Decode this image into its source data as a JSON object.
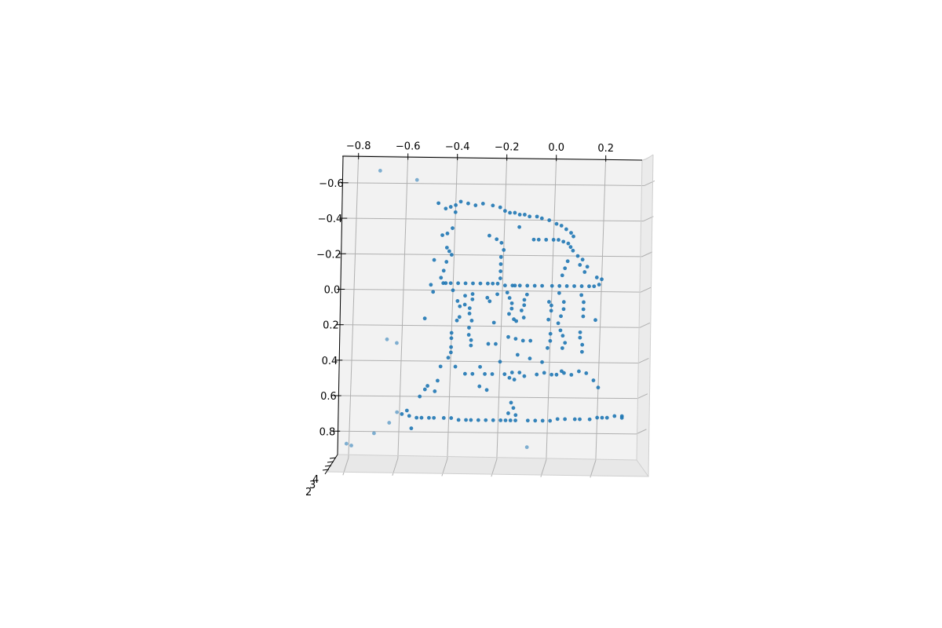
{
  "chart_data": {
    "type": "scatter",
    "projection": "3d",
    "title": "",
    "xlabel": "",
    "ylabel": "",
    "zlabel": "",
    "grid": true,
    "pane_color": "#f2f2f2",
    "marker_color": "#1f77b4",
    "xlim": [
      -0.85,
      0.35
    ],
    "ylim": [
      -0.75,
      0.95
    ],
    "x_ticks": [
      "−0.8",
      "−0.6",
      "−0.4",
      "−0.2",
      "0.0",
      "0.2"
    ],
    "y_ticks": [
      "−0.6",
      "−0.4",
      "−0.2",
      "0.0",
      "0.2",
      "0.4",
      "0.6",
      "0.8"
    ],
    "z_ticks_visible": [
      "2",
      "3",
      "4"
    ],
    "points": [
      {
        "x": -0.71,
        "y": -0.67
      },
      {
        "x": -0.56,
        "y": -0.62
      },
      {
        "x": -0.47,
        "y": -0.49
      },
      {
        "x": -0.44,
        "y": -0.46
      },
      {
        "x": -0.42,
        "y": -0.47
      },
      {
        "x": -0.4,
        "y": -0.48
      },
      {
        "x": -0.38,
        "y": -0.5
      },
      {
        "x": -0.35,
        "y": -0.49
      },
      {
        "x": -0.32,
        "y": -0.48
      },
      {
        "x": -0.29,
        "y": -0.49
      },
      {
        "x": -0.25,
        "y": -0.48
      },
      {
        "x": -0.22,
        "y": -0.47
      },
      {
        "x": -0.2,
        "y": -0.45
      },
      {
        "x": -0.18,
        "y": -0.44
      },
      {
        "x": -0.16,
        "y": -0.44
      },
      {
        "x": -0.14,
        "y": -0.43
      },
      {
        "x": -0.12,
        "y": -0.43
      },
      {
        "x": -0.1,
        "y": -0.42
      },
      {
        "x": -0.07,
        "y": -0.42
      },
      {
        "x": -0.05,
        "y": -0.41
      },
      {
        "x": -0.02,
        "y": -0.4
      },
      {
        "x": 0.01,
        "y": -0.38
      },
      {
        "x": 0.03,
        "y": -0.37
      },
      {
        "x": 0.05,
        "y": -0.35
      },
      {
        "x": 0.07,
        "y": -0.33
      },
      {
        "x": 0.08,
        "y": -0.31
      },
      {
        "x": -0.4,
        "y": -0.44
      },
      {
        "x": -0.41,
        "y": -0.35
      },
      {
        "x": -0.45,
        "y": -0.31
      },
      {
        "x": -0.43,
        "y": -0.32
      },
      {
        "x": -0.43,
        "y": -0.24
      },
      {
        "x": -0.42,
        "y": -0.22
      },
      {
        "x": -0.41,
        "y": -0.2
      },
      {
        "x": -0.48,
        "y": -0.17
      },
      {
        "x": -0.43,
        "y": -0.16
      },
      {
        "x": -0.44,
        "y": -0.11
      },
      {
        "x": -0.45,
        "y": -0.07
      },
      {
        "x": -0.49,
        "y": -0.03
      },
      {
        "x": -0.44,
        "y": -0.04
      },
      {
        "x": -0.26,
        "y": -0.31
      },
      {
        "x": -0.23,
        "y": -0.29
      },
      {
        "x": -0.21,
        "y": -0.27
      },
      {
        "x": -0.2,
        "y": -0.23
      },
      {
        "x": -0.21,
        "y": -0.19
      },
      {
        "x": -0.21,
        "y": -0.15
      },
      {
        "x": -0.21,
        "y": -0.11
      },
      {
        "x": -0.21,
        "y": -0.07
      },
      {
        "x": -0.22,
        "y": -0.04
      },
      {
        "x": -0.14,
        "y": -0.36
      },
      {
        "x": -0.08,
        "y": -0.29
      },
      {
        "x": -0.06,
        "y": -0.29
      },
      {
        "x": -0.03,
        "y": -0.29
      },
      {
        "x": 0.0,
        "y": -0.29
      },
      {
        "x": 0.02,
        "y": -0.29
      },
      {
        "x": 0.04,
        "y": -0.28
      },
      {
        "x": 0.06,
        "y": -0.27
      },
      {
        "x": 0.07,
        "y": -0.25
      },
      {
        "x": 0.08,
        "y": -0.23
      },
      {
        "x": 0.1,
        "y": -0.2
      },
      {
        "x": 0.12,
        "y": -0.18
      },
      {
        "x": 0.11,
        "y": -0.15
      },
      {
        "x": 0.14,
        "y": -0.14
      },
      {
        "x": 0.13,
        "y": -0.11
      },
      {
        "x": 0.06,
        "y": -0.17
      },
      {
        "x": 0.05,
        "y": -0.13
      },
      {
        "x": 0.04,
        "y": -0.09
      },
      {
        "x": 0.18,
        "y": -0.08
      },
      {
        "x": 0.2,
        "y": -0.07
      },
      {
        "x": 0.19,
        "y": -0.04
      },
      {
        "x": -0.43,
        "y": -0.04
      },
      {
        "x": -0.41,
        "y": -0.04
      },
      {
        "x": -0.38,
        "y": -0.04
      },
      {
        "x": -0.35,
        "y": -0.04
      },
      {
        "x": -0.32,
        "y": -0.04
      },
      {
        "x": -0.29,
        "y": -0.04
      },
      {
        "x": -0.26,
        "y": -0.04
      },
      {
        "x": -0.24,
        "y": -0.04
      },
      {
        "x": -0.19,
        "y": -0.03
      },
      {
        "x": -0.16,
        "y": -0.03
      },
      {
        "x": -0.15,
        "y": -0.03
      },
      {
        "x": -0.13,
        "y": -0.03
      },
      {
        "x": -0.1,
        "y": -0.03
      },
      {
        "x": -0.07,
        "y": -0.03
      },
      {
        "x": -0.04,
        "y": -0.03
      },
      {
        "x": 0.0,
        "y": -0.03
      },
      {
        "x": 0.03,
        "y": -0.03
      },
      {
        "x": 0.06,
        "y": -0.03
      },
      {
        "x": 0.09,
        "y": -0.03
      },
      {
        "x": 0.12,
        "y": -0.03
      },
      {
        "x": 0.15,
        "y": -0.03
      },
      {
        "x": 0.17,
        "y": -0.03
      },
      {
        "x": -0.4,
        "y": 0.0
      },
      {
        "x": -0.38,
        "y": 0.06
      },
      {
        "x": -0.37,
        "y": 0.09
      },
      {
        "x": -0.37,
        "y": 0.15
      },
      {
        "x": -0.38,
        "y": 0.17
      },
      {
        "x": -0.48,
        "y": 0.01
      },
      {
        "x": -0.51,
        "y": 0.16
      },
      {
        "x": -0.35,
        "y": 0.03
      },
      {
        "x": -0.35,
        "y": 0.08
      },
      {
        "x": -0.32,
        "y": 0.02
      },
      {
        "x": -0.32,
        "y": 0.05
      },
      {
        "x": -0.33,
        "y": 0.1
      },
      {
        "x": -0.33,
        "y": 0.13
      },
      {
        "x": -0.32,
        "y": 0.17
      },
      {
        "x": -0.33,
        "y": 0.21
      },
      {
        "x": -0.33,
        "y": 0.25
      },
      {
        "x": -0.32,
        "y": 0.28
      },
      {
        "x": -0.32,
        "y": 0.31
      },
      {
        "x": -0.4,
        "y": 0.24
      },
      {
        "x": -0.4,
        "y": 0.27
      },
      {
        "x": -0.4,
        "y": 0.32
      },
      {
        "x": -0.4,
        "y": 0.35
      },
      {
        "x": -0.26,
        "y": 0.04
      },
      {
        "x": -0.25,
        "y": 0.06
      },
      {
        "x": -0.22,
        "y": 0.02
      },
      {
        "x": -0.23,
        "y": 0.18
      },
      {
        "x": -0.22,
        "y": 0.3
      },
      {
        "x": -0.25,
        "y": 0.3
      },
      {
        "x": -0.18,
        "y": 0.01
      },
      {
        "x": -0.17,
        "y": 0.04
      },
      {
        "x": -0.16,
        "y": 0.07
      },
      {
        "x": -0.16,
        "y": 0.1
      },
      {
        "x": -0.17,
        "y": 0.13
      },
      {
        "x": -0.15,
        "y": 0.16
      },
      {
        "x": -0.14,
        "y": 0.17
      },
      {
        "x": -0.17,
        "y": 0.26
      },
      {
        "x": -0.14,
        "y": 0.27
      },
      {
        "x": -0.1,
        "y": 0.02
      },
      {
        "x": -0.11,
        "y": 0.05
      },
      {
        "x": -0.11,
        "y": 0.08
      },
      {
        "x": -0.12,
        "y": 0.11
      },
      {
        "x": -0.11,
        "y": 0.15
      },
      {
        "x": -0.11,
        "y": 0.28
      },
      {
        "x": -0.08,
        "y": 0.28
      },
      {
        "x": -0.13,
        "y": 0.36
      },
      {
        "x": -0.01,
        "y": 0.06
      },
      {
        "x": 0.0,
        "y": 0.08
      },
      {
        "x": 0.0,
        "y": 0.11
      },
      {
        "x": -0.01,
        "y": 0.16
      },
      {
        "x": 0.0,
        "y": 0.24
      },
      {
        "x": 0.0,
        "y": 0.28
      },
      {
        "x": -0.01,
        "y": 0.32
      },
      {
        "x": 0.03,
        "y": 0.01
      },
      {
        "x": 0.03,
        "y": 0.18
      },
      {
        "x": 0.05,
        "y": 0.06
      },
      {
        "x": 0.05,
        "y": 0.1
      },
      {
        "x": 0.04,
        "y": 0.14
      },
      {
        "x": 0.04,
        "y": 0.22
      },
      {
        "x": 0.05,
        "y": 0.25
      },
      {
        "x": 0.06,
        "y": 0.29
      },
      {
        "x": 0.05,
        "y": 0.32
      },
      {
        "x": 0.12,
        "y": 0.02
      },
      {
        "x": 0.13,
        "y": 0.06
      },
      {
        "x": 0.13,
        "y": 0.1
      },
      {
        "x": 0.13,
        "y": 0.14
      },
      {
        "x": 0.18,
        "y": 0.16
      },
      {
        "x": 0.12,
        "y": 0.23
      },
      {
        "x": 0.12,
        "y": 0.26
      },
      {
        "x": 0.13,
        "y": 0.3
      },
      {
        "x": 0.13,
        "y": 0.34
      },
      {
        "x": -0.66,
        "y": 0.28
      },
      {
        "x": -0.62,
        "y": 0.3
      },
      {
        "x": -0.41,
        "y": 0.38
      },
      {
        "x": -0.38,
        "y": 0.43
      },
      {
        "x": -0.44,
        "y": 0.43
      },
      {
        "x": -0.34,
        "y": 0.47
      },
      {
        "x": -0.31,
        "y": 0.47
      },
      {
        "x": -0.28,
        "y": 0.43
      },
      {
        "x": -0.26,
        "y": 0.47
      },
      {
        "x": -0.23,
        "y": 0.47
      },
      {
        "x": -0.2,
        "y": 0.4
      },
      {
        "x": -0.18,
        "y": 0.47
      },
      {
        "x": -0.16,
        "y": 0.49
      },
      {
        "x": -0.15,
        "y": 0.46
      },
      {
        "x": -0.14,
        "y": 0.5
      },
      {
        "x": -0.12,
        "y": 0.46
      },
      {
        "x": -0.1,
        "y": 0.48
      },
      {
        "x": -0.08,
        "y": 0.38
      },
      {
        "x": -0.05,
        "y": 0.47
      },
      {
        "x": -0.03,
        "y": 0.4
      },
      {
        "x": -0.02,
        "y": 0.46
      },
      {
        "x": 0.01,
        "y": 0.47
      },
      {
        "x": 0.03,
        "y": 0.47
      },
      {
        "x": 0.05,
        "y": 0.45
      },
      {
        "x": 0.06,
        "y": 0.46
      },
      {
        "x": 0.09,
        "y": 0.47
      },
      {
        "x": 0.12,
        "y": 0.45
      },
      {
        "x": 0.15,
        "y": 0.46
      },
      {
        "x": 0.18,
        "y": 0.5
      },
      {
        "x": 0.2,
        "y": 0.54
      },
      {
        "x": -0.28,
        "y": 0.54
      },
      {
        "x": -0.25,
        "y": 0.56
      },
      {
        "x": -0.49,
        "y": 0.54
      },
      {
        "x": -0.5,
        "y": 0.56
      },
      {
        "x": -0.52,
        "y": 0.6
      },
      {
        "x": -0.45,
        "y": 0.51
      },
      {
        "x": -0.46,
        "y": 0.57
      },
      {
        "x": -0.15,
        "y": 0.63
      },
      {
        "x": -0.14,
        "y": 0.66
      },
      {
        "x": -0.13,
        "y": 0.7
      },
      {
        "x": -0.16,
        "y": 0.69
      },
      {
        "x": -0.57,
        "y": 0.68
      },
      {
        "x": -0.56,
        "y": 0.71
      },
      {
        "x": -0.53,
        "y": 0.72
      },
      {
        "x": -0.51,
        "y": 0.72
      },
      {
        "x": -0.48,
        "y": 0.72
      },
      {
        "x": -0.46,
        "y": 0.72
      },
      {
        "x": -0.42,
        "y": 0.72
      },
      {
        "x": -0.39,
        "y": 0.72
      },
      {
        "x": -0.36,
        "y": 0.73
      },
      {
        "x": -0.33,
        "y": 0.73
      },
      {
        "x": -0.31,
        "y": 0.73
      },
      {
        "x": -0.28,
        "y": 0.73
      },
      {
        "x": -0.25,
        "y": 0.73
      },
      {
        "x": -0.22,
        "y": 0.73
      },
      {
        "x": -0.19,
        "y": 0.73
      },
      {
        "x": -0.17,
        "y": 0.73
      },
      {
        "x": -0.15,
        "y": 0.73
      },
      {
        "x": -0.13,
        "y": 0.73
      },
      {
        "x": -0.08,
        "y": 0.73
      },
      {
        "x": -0.05,
        "y": 0.73
      },
      {
        "x": -0.02,
        "y": 0.73
      },
      {
        "x": 0.01,
        "y": 0.73
      },
      {
        "x": 0.04,
        "y": 0.72
      },
      {
        "x": 0.07,
        "y": 0.72
      },
      {
        "x": 0.11,
        "y": 0.72
      },
      {
        "x": 0.13,
        "y": 0.72
      },
      {
        "x": 0.17,
        "y": 0.72
      },
      {
        "x": 0.2,
        "y": 0.71
      },
      {
        "x": 0.22,
        "y": 0.71
      },
      {
        "x": 0.24,
        "y": 0.71
      },
      {
        "x": 0.27,
        "y": 0.7
      },
      {
        "x": 0.3,
        "y": 0.7
      },
      {
        "x": 0.3,
        "y": 0.71
      },
      {
        "x": -0.59,
        "y": 0.7
      },
      {
        "x": -0.61,
        "y": 0.69
      },
      {
        "x": -0.64,
        "y": 0.75
      },
      {
        "x": -0.55,
        "y": 0.78
      },
      {
        "x": -0.7,
        "y": 0.81
      },
      {
        "x": -0.81,
        "y": 0.87
      },
      {
        "x": -0.79,
        "y": 0.88
      },
      {
        "x": -0.08,
        "y": 0.88
      }
    ]
  }
}
